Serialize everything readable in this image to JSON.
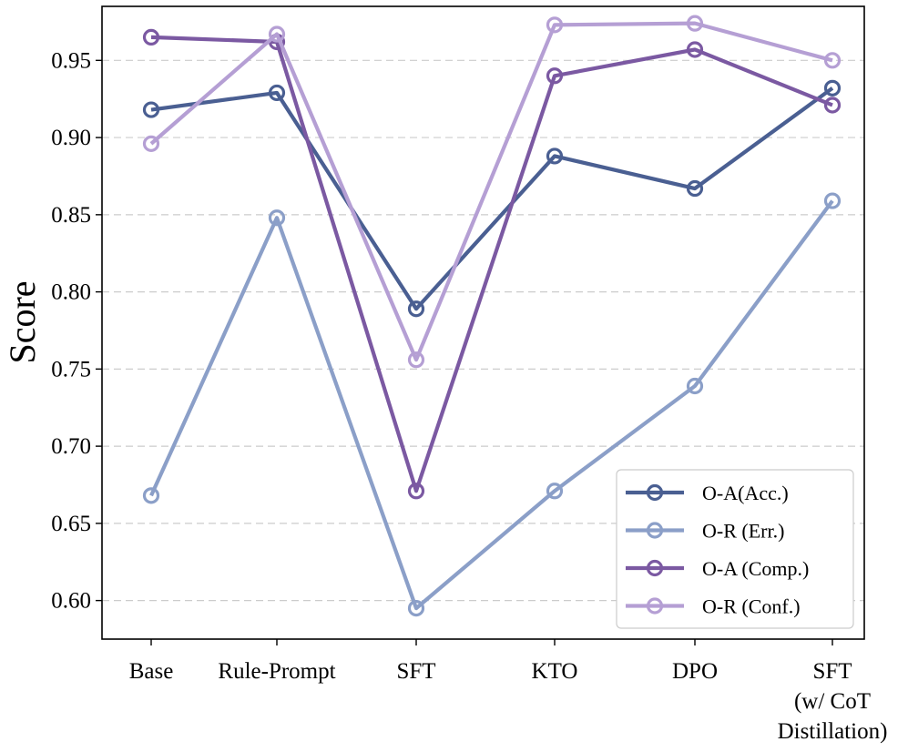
{
  "chart_data": {
    "type": "line",
    "title": "",
    "xlabel": "",
    "ylabel": "Score",
    "ylim": [
      0.575,
      0.985
    ],
    "yticks": [
      0.6,
      0.65,
      0.7,
      0.75,
      0.8,
      0.85,
      0.9,
      0.95
    ],
    "ytick_labels": [
      "0.60",
      "0.65",
      "0.70",
      "0.75",
      "0.80",
      "0.85",
      "0.90",
      "0.95"
    ],
    "grid": "horizontal dashed",
    "legend_position": "lower-right",
    "categories": [
      [
        "Base"
      ],
      [
        "Rule-Prompt"
      ],
      [
        "SFT"
      ],
      [
        "KTO"
      ],
      [
        "DPO"
      ],
      [
        "SFT",
        "(w/ CoT",
        "Distillation)"
      ]
    ],
    "series": [
      {
        "name": "O-A(Acc.)",
        "color": "#4a5f92",
        "values": [
          0.918,
          0.929,
          0.789,
          0.888,
          0.867,
          0.932
        ]
      },
      {
        "name": "O-R (Err.)",
        "color": "#8b9fc8",
        "values": [
          0.668,
          0.848,
          0.595,
          0.671,
          0.739,
          0.859
        ]
      },
      {
        "name": "O-A (Comp.)",
        "color": "#7b59a2",
        "values": [
          0.965,
          0.962,
          0.671,
          0.94,
          0.957,
          0.921
        ]
      },
      {
        "name": "O-R (Conf.)",
        "color": "#b59fd4",
        "values": [
          0.896,
          0.967,
          0.756,
          0.973,
          0.974,
          0.95
        ]
      }
    ]
  }
}
